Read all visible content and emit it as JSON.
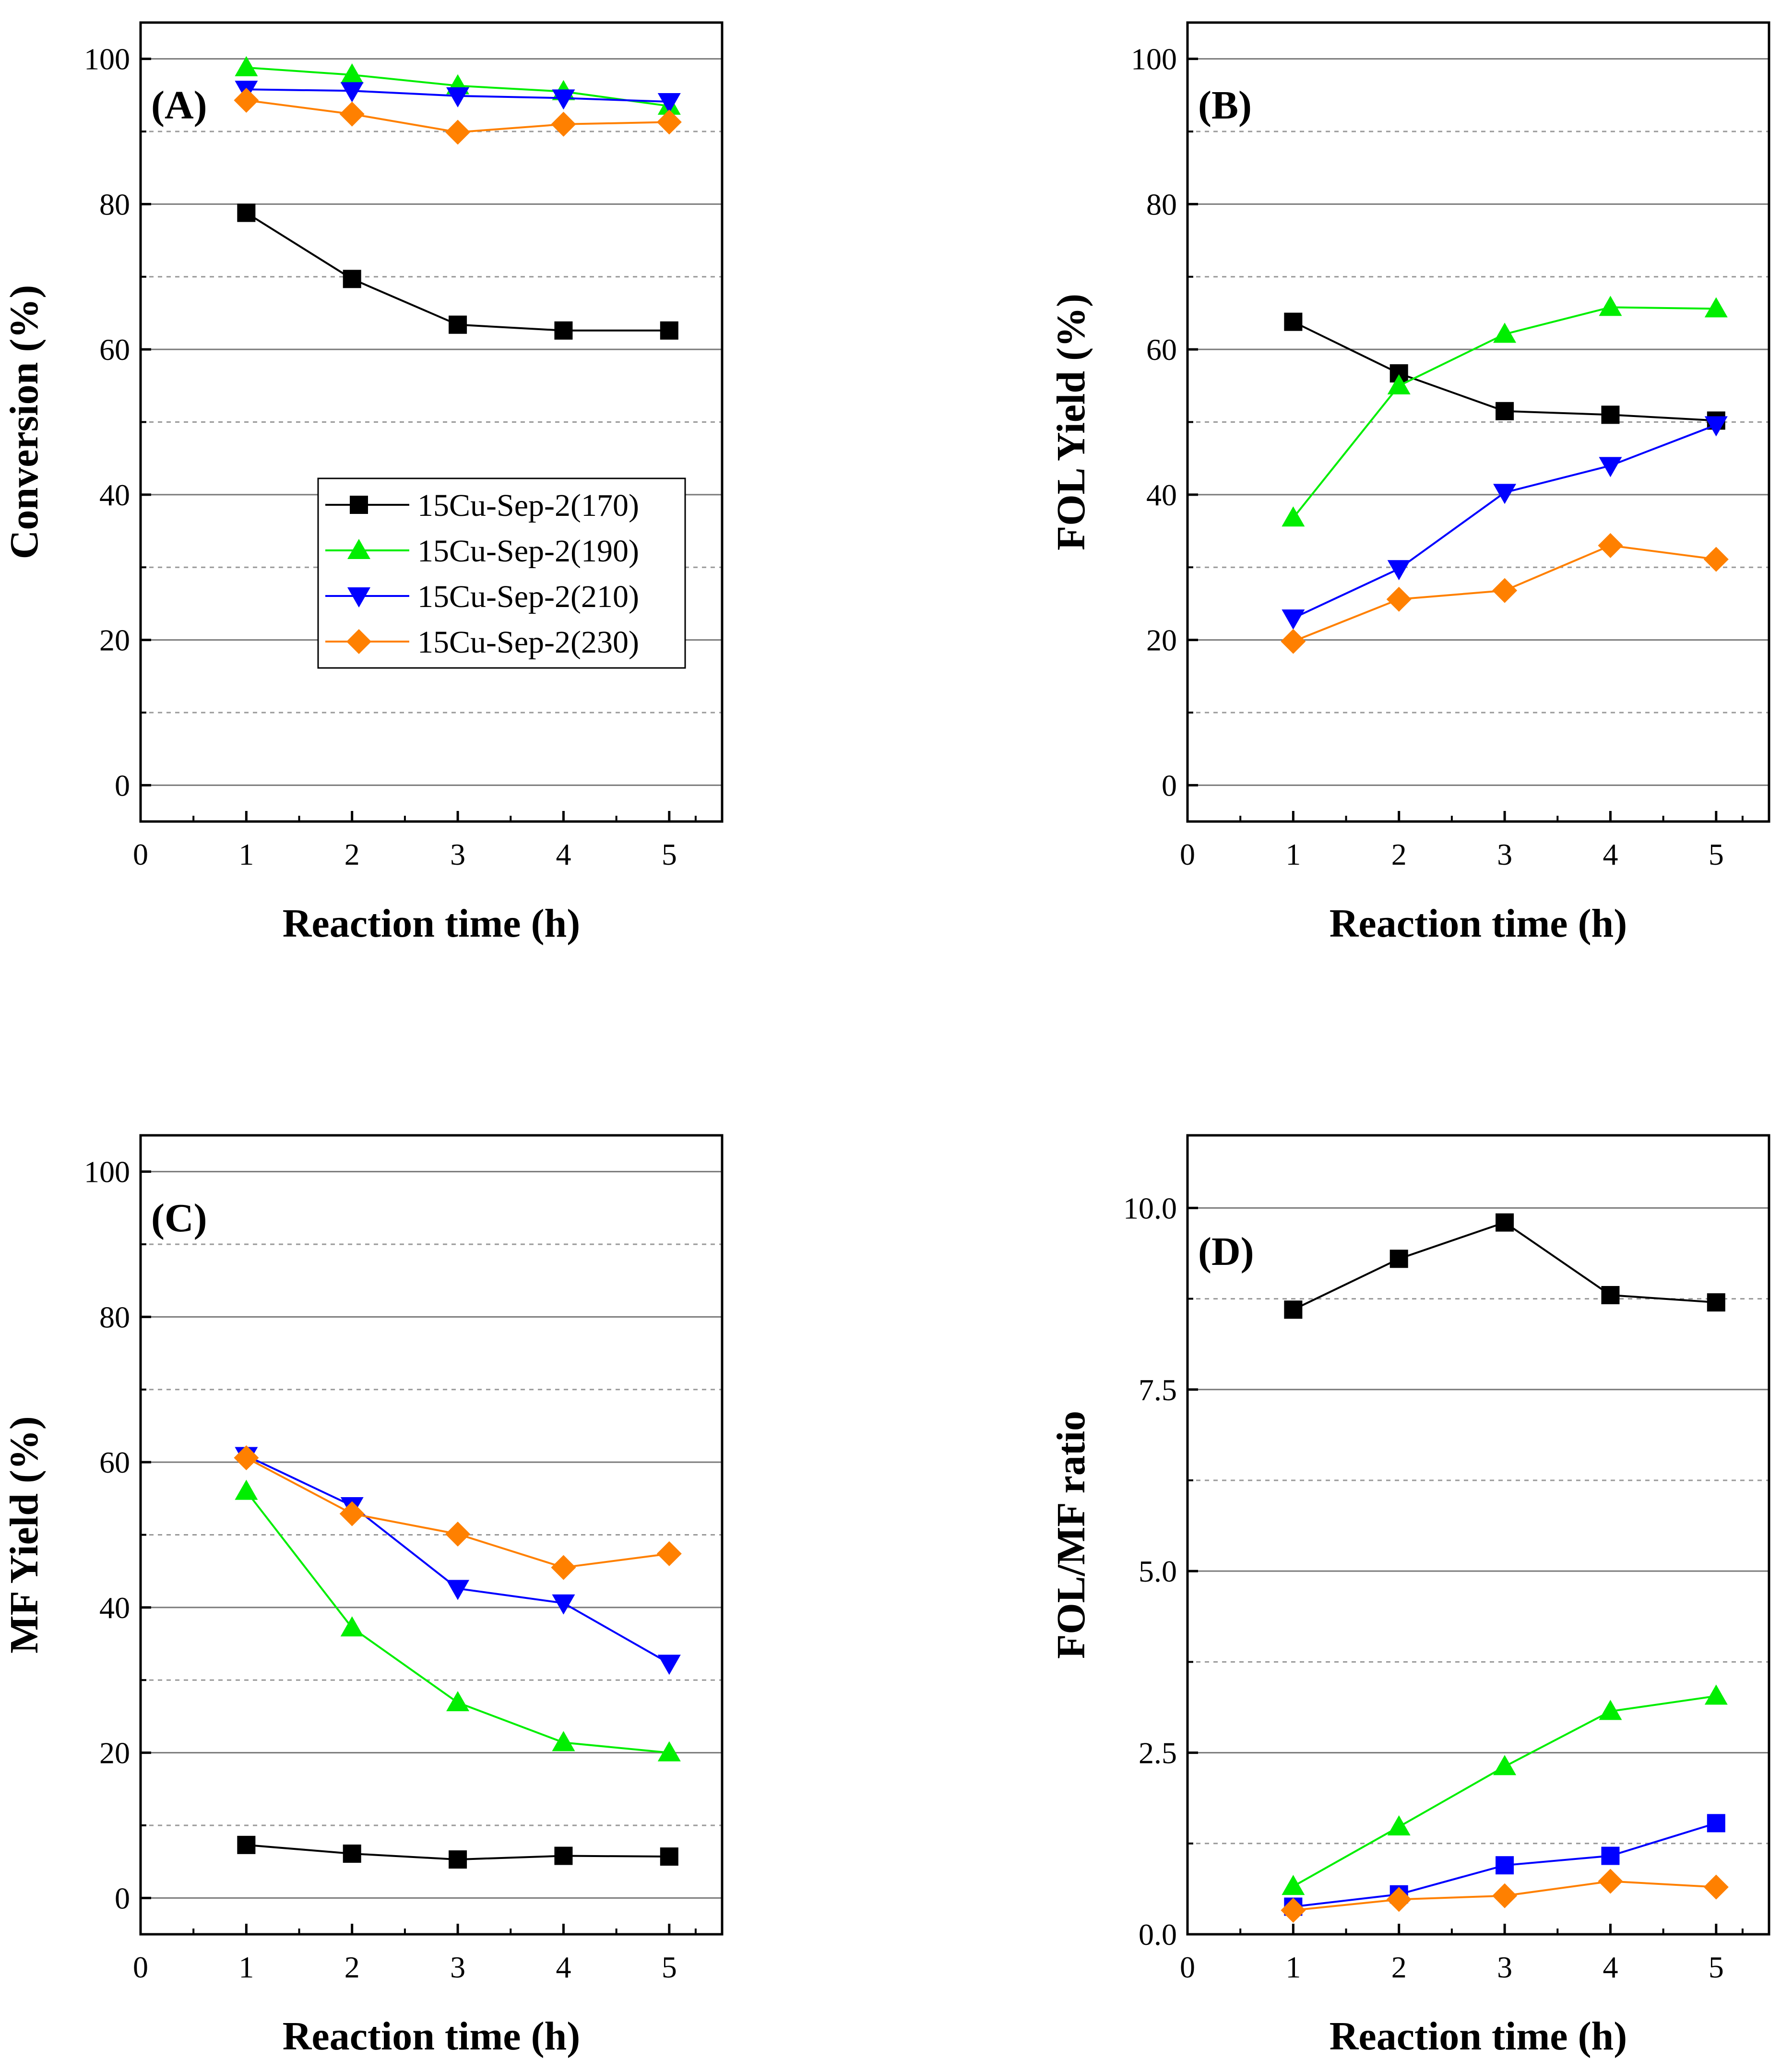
{
  "colors": {
    "15Cu-Sep-2(170)": "#000000",
    "15Cu-Sep-2(190)": "#00ee00",
    "15Cu-Sep-2(210)": "#0000ff",
    "15Cu-Sep-2(230)": "#ff8000"
  },
  "chart_data": [
    {
      "type": "line",
      "panel": "(A)",
      "xlabel": "Reaction time (h)",
      "ylabel": "Conversion (%)",
      "xlim": [
        0,
        5.5
      ],
      "ylim": [
        -5,
        105
      ],
      "xticks": [
        0,
        1,
        2,
        3,
        4,
        5
      ],
      "yticks": [
        0,
        20,
        40,
        60,
        80,
        100
      ],
      "yticks_minor": [
        10,
        30,
        50,
        70,
        90
      ],
      "ytick_labels": [
        "0",
        "20",
        "40",
        "60",
        "80",
        "100"
      ],
      "x": [
        1,
        2,
        3,
        4,
        5
      ],
      "legend": "center-right",
      "series": [
        {
          "name": "15Cu-Sep-2(170)",
          "marker": "square",
          "values": [
            78.8,
            69.7,
            63.4,
            62.6,
            62.6
          ]
        },
        {
          "name": "15Cu-Sep-2(190)",
          "marker": "triangle-up",
          "values": [
            98.8,
            97.8,
            96.3,
            95.5,
            93.5
          ]
        },
        {
          "name": "15Cu-Sep-2(210)",
          "marker": "triangle-down",
          "values": [
            95.8,
            95.6,
            94.9,
            94.6,
            94.1
          ]
        },
        {
          "name": "15Cu-Sep-2(230)",
          "marker": "diamond",
          "values": [
            94.3,
            92.4,
            89.9,
            91.0,
            91.3
          ]
        }
      ]
    },
    {
      "type": "line",
      "panel": "(B)",
      "xlabel": "Reaction time (h)",
      "ylabel": "FOL Yield (%)",
      "xlim": [
        0,
        5.5
      ],
      "ylim": [
        -5,
        105
      ],
      "xticks": [
        0,
        1,
        2,
        3,
        4,
        5
      ],
      "yticks": [
        0,
        20,
        40,
        60,
        80,
        100
      ],
      "yticks_minor": [
        10,
        30,
        50,
        70,
        90
      ],
      "ytick_labels": [
        "0",
        "20",
        "40",
        "60",
        "80",
        "100"
      ],
      "x": [
        1,
        2,
        3,
        4,
        5
      ],
      "series": [
        {
          "name": "15Cu-Sep-2(170)",
          "marker": "square",
          "values": [
            63.8,
            56.7,
            51.5,
            51.0,
            50.2
          ]
        },
        {
          "name": "15Cu-Sep-2(190)",
          "marker": "triangle-up",
          "values": [
            36.8,
            55.0,
            62.1,
            65.8,
            65.6
          ]
        },
        {
          "name": "15Cu-Sep-2(210)",
          "marker": "triangle-down",
          "values": [
            23.0,
            29.8,
            40.3,
            44.0,
            49.6
          ]
        },
        {
          "name": "15Cu-Sep-2(230)",
          "marker": "diamond",
          "values": [
            19.8,
            25.6,
            26.8,
            33.0,
            31.1
          ]
        }
      ]
    },
    {
      "type": "line",
      "panel": "(C)",
      "xlabel": "Reaction time (h)",
      "ylabel": "MF Yield (%)",
      "xlim": [
        0,
        5.5
      ],
      "ylim": [
        -5,
        105
      ],
      "xticks": [
        0,
        1,
        2,
        3,
        4,
        5
      ],
      "yticks": [
        0,
        20,
        40,
        60,
        80,
        100
      ],
      "yticks_minor": [
        10,
        30,
        50,
        70,
        90
      ],
      "ytick_labels": [
        "0",
        "20",
        "40",
        "60",
        "80",
        "100"
      ],
      "x": [
        1,
        2,
        3,
        4,
        5
      ],
      "series": [
        {
          "name": "15Cu-Sep-2(170)",
          "marker": "square",
          "values": [
            7.3,
            6.1,
            5.3,
            5.8,
            5.7
          ]
        },
        {
          "name": "15Cu-Sep-2(190)",
          "marker": "triangle-up",
          "values": [
            56.0,
            37.2,
            26.9,
            21.4,
            20.0
          ]
        },
        {
          "name": "15Cu-Sep-2(210)",
          "marker": "triangle-down",
          "values": [
            60.9,
            54.0,
            42.6,
            40.6,
            32.3
          ]
        },
        {
          "name": "15Cu-Sep-2(230)",
          "marker": "diamond",
          "values": [
            60.6,
            52.9,
            50.1,
            45.5,
            47.4
          ]
        }
      ]
    },
    {
      "type": "line",
      "panel": "(D)",
      "xlabel": "Reaction time (h)",
      "ylabel": "FOL/MF ratio",
      "xlim": [
        0,
        5.5
      ],
      "ylim": [
        0,
        11
      ],
      "xticks": [
        0,
        1,
        2,
        3,
        4,
        5
      ],
      "yticks": [
        0,
        2.5,
        5,
        7.5,
        10
      ],
      "yticks_minor": [
        1.25,
        3.75,
        6.25,
        8.75
      ],
      "ytick_labels": [
        "0.0",
        "2.5",
        "5.0",
        "7.5",
        "10.0"
      ],
      "x": [
        1,
        2,
        3,
        4,
        5
      ],
      "series": [
        {
          "name": "15Cu-Sep-2(170)",
          "marker": "square",
          "values": [
            8.6,
            9.3,
            9.8,
            8.8,
            8.7
          ]
        },
        {
          "name": "15Cu-Sep-2(190)",
          "marker": "triangle-up",
          "values": [
            0.66,
            1.48,
            2.31,
            3.07,
            3.28
          ]
        },
        {
          "name": "15Cu-Sep-2(210)",
          "marker": "square",
          "values": [
            0.38,
            0.55,
            0.95,
            1.08,
            1.53
          ]
        },
        {
          "name": "15Cu-Sep-2(230)",
          "marker": "diamond",
          "values": [
            0.33,
            0.48,
            0.53,
            0.73,
            0.65
          ]
        }
      ]
    }
  ]
}
